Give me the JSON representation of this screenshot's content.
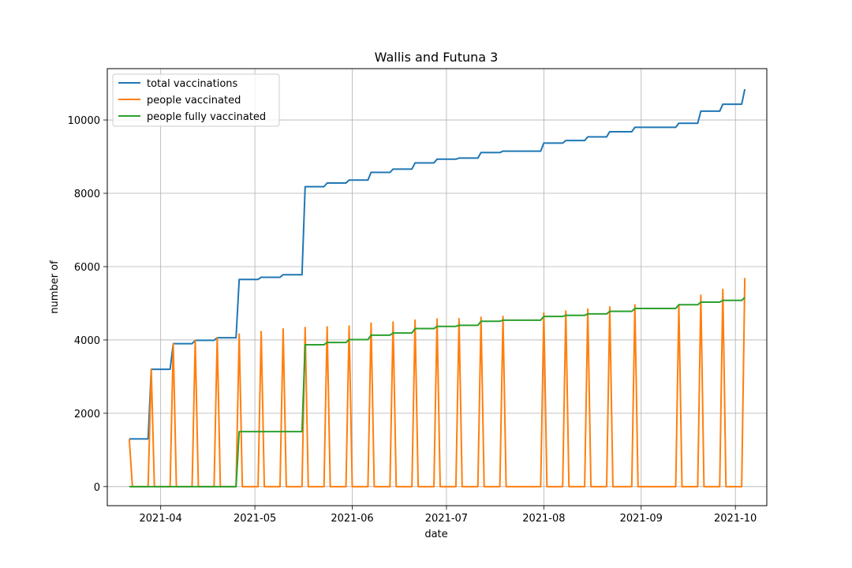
{
  "chart_data": {
    "type": "line",
    "title": "Wallis and Futuna 3",
    "xlabel": "date",
    "ylabel": "number of",
    "xlim": [
      "2021-03-15",
      "2021-10-11"
    ],
    "ylim": [
      -520,
      11400
    ],
    "xticks": [
      "2021-04-01",
      "2021-05-01",
      "2021-06-01",
      "2021-07-01",
      "2021-08-01",
      "2021-09-01",
      "2021-10-01"
    ],
    "xtick_labels": [
      "2021-04",
      "2021-05",
      "2021-06",
      "2021-07",
      "2021-08",
      "2021-09",
      "2021-10"
    ],
    "yticks": [
      0,
      2000,
      4000,
      6000,
      8000,
      10000
    ],
    "ytick_labels": [
      "0",
      "2000",
      "4000",
      "6000",
      "8000",
      "10000"
    ],
    "grid": true,
    "legend_position": "top-left",
    "series": [
      {
        "name": "total vaccinations",
        "color": "#1f77b4",
        "points": [
          [
            "2021-03-22",
            1300
          ],
          [
            "2021-03-28",
            1300
          ],
          [
            "2021-03-29",
            3200
          ],
          [
            "2021-04-04",
            3200
          ],
          [
            "2021-04-05",
            3900
          ],
          [
            "2021-04-11",
            3900
          ],
          [
            "2021-04-12",
            3990
          ],
          [
            "2021-04-18",
            3990
          ],
          [
            "2021-04-19",
            4060
          ],
          [
            "2021-04-25",
            4060
          ],
          [
            "2021-04-26",
            5650
          ],
          [
            "2021-05-02",
            5650
          ],
          [
            "2021-05-03",
            5710
          ],
          [
            "2021-05-09",
            5710
          ],
          [
            "2021-05-10",
            5780
          ],
          [
            "2021-05-16",
            5780
          ],
          [
            "2021-05-17",
            8180
          ],
          [
            "2021-05-23",
            8180
          ],
          [
            "2021-05-24",
            8280
          ],
          [
            "2021-05-30",
            8280
          ],
          [
            "2021-05-31",
            8360
          ],
          [
            "2021-06-06",
            8360
          ],
          [
            "2021-06-07",
            8570
          ],
          [
            "2021-06-13",
            8570
          ],
          [
            "2021-06-14",
            8660
          ],
          [
            "2021-06-20",
            8660
          ],
          [
            "2021-06-21",
            8830
          ],
          [
            "2021-06-27",
            8830
          ],
          [
            "2021-06-28",
            8930
          ],
          [
            "2021-07-04",
            8930
          ],
          [
            "2021-07-05",
            8960
          ],
          [
            "2021-07-11",
            8960
          ],
          [
            "2021-07-12",
            9110
          ],
          [
            "2021-07-18",
            9110
          ],
          [
            "2021-07-19",
            9150
          ],
          [
            "2021-07-31",
            9150
          ],
          [
            "2021-08-01",
            9370
          ],
          [
            "2021-08-07",
            9370
          ],
          [
            "2021-08-08",
            9440
          ],
          [
            "2021-08-14",
            9440
          ],
          [
            "2021-08-15",
            9540
          ],
          [
            "2021-08-21",
            9540
          ],
          [
            "2021-08-22",
            9680
          ],
          [
            "2021-08-29",
            9680
          ],
          [
            "2021-08-30",
            9800
          ],
          [
            "2021-09-12",
            9800
          ],
          [
            "2021-09-13",
            9910
          ],
          [
            "2021-09-19",
            9910
          ],
          [
            "2021-09-20",
            10240
          ],
          [
            "2021-09-26",
            10240
          ],
          [
            "2021-09-27",
            10430
          ],
          [
            "2021-10-03",
            10430
          ],
          [
            "2021-10-04",
            10840
          ]
        ]
      },
      {
        "name": "people vaccinated",
        "color": "#ff7f0e",
        "points": [
          [
            "2021-03-22",
            1300
          ],
          [
            "2021-03-23",
            0
          ],
          [
            "2021-03-28",
            0
          ],
          [
            "2021-03-29",
            3200
          ],
          [
            "2021-03-30",
            0
          ],
          [
            "2021-04-04",
            0
          ],
          [
            "2021-04-05",
            3900
          ],
          [
            "2021-04-06",
            0
          ],
          [
            "2021-04-11",
            0
          ],
          [
            "2021-04-12",
            3990
          ],
          [
            "2021-04-13",
            0
          ],
          [
            "2021-04-18",
            0
          ],
          [
            "2021-04-19",
            4060
          ],
          [
            "2021-04-20",
            0
          ],
          [
            "2021-04-25",
            0
          ],
          [
            "2021-04-26",
            4160
          ],
          [
            "2021-04-27",
            0
          ],
          [
            "2021-05-02",
            0
          ],
          [
            "2021-05-03",
            4230
          ],
          [
            "2021-05-04",
            0
          ],
          [
            "2021-05-09",
            0
          ],
          [
            "2021-05-10",
            4300
          ],
          [
            "2021-05-11",
            0
          ],
          [
            "2021-05-16",
            0
          ],
          [
            "2021-05-17",
            4340
          ],
          [
            "2021-05-18",
            0
          ],
          [
            "2021-05-23",
            0
          ],
          [
            "2021-05-24",
            4360
          ],
          [
            "2021-05-25",
            0
          ],
          [
            "2021-05-30",
            0
          ],
          [
            "2021-05-31",
            4380
          ],
          [
            "2021-06-01",
            0
          ],
          [
            "2021-06-06",
            0
          ],
          [
            "2021-06-07",
            4460
          ],
          [
            "2021-06-08",
            0
          ],
          [
            "2021-06-13",
            0
          ],
          [
            "2021-06-14",
            4490
          ],
          [
            "2021-06-15",
            0
          ],
          [
            "2021-06-20",
            0
          ],
          [
            "2021-06-21",
            4540
          ],
          [
            "2021-06-22",
            0
          ],
          [
            "2021-06-27",
            0
          ],
          [
            "2021-06-28",
            4570
          ],
          [
            "2021-06-29",
            0
          ],
          [
            "2021-07-04",
            0
          ],
          [
            "2021-07-05",
            4580
          ],
          [
            "2021-07-06",
            0
          ],
          [
            "2021-07-11",
            0
          ],
          [
            "2021-07-12",
            4620
          ],
          [
            "2021-07-13",
            0
          ],
          [
            "2021-07-18",
            0
          ],
          [
            "2021-07-19",
            4640
          ],
          [
            "2021-07-20",
            0
          ],
          [
            "2021-07-31",
            0
          ],
          [
            "2021-08-01",
            4740
          ],
          [
            "2021-08-02",
            0
          ],
          [
            "2021-08-07",
            0
          ],
          [
            "2021-08-08",
            4790
          ],
          [
            "2021-08-09",
            0
          ],
          [
            "2021-08-14",
            0
          ],
          [
            "2021-08-15",
            4840
          ],
          [
            "2021-08-16",
            0
          ],
          [
            "2021-08-21",
            0
          ],
          [
            "2021-08-22",
            4900
          ],
          [
            "2021-08-23",
            0
          ],
          [
            "2021-08-29",
            0
          ],
          [
            "2021-08-30",
            4960
          ],
          [
            "2021-08-31",
            0
          ],
          [
            "2021-09-12",
            0
          ],
          [
            "2021-09-13",
            4960
          ],
          [
            "2021-09-14",
            0
          ],
          [
            "2021-09-19",
            0
          ],
          [
            "2021-09-20",
            5220
          ],
          [
            "2021-09-21",
            0
          ],
          [
            "2021-09-26",
            0
          ],
          [
            "2021-09-27",
            5380
          ],
          [
            "2021-09-28",
            0
          ],
          [
            "2021-10-03",
            0
          ],
          [
            "2021-10-04",
            5690
          ]
        ]
      },
      {
        "name": "people fully vaccinated",
        "color": "#2ca02c",
        "points": [
          [
            "2021-03-22",
            0
          ],
          [
            "2021-04-25",
            0
          ],
          [
            "2021-04-26",
            1500
          ],
          [
            "2021-05-16",
            1500
          ],
          [
            "2021-05-17",
            3870
          ],
          [
            "2021-05-23",
            3870
          ],
          [
            "2021-05-24",
            3930
          ],
          [
            "2021-05-30",
            3930
          ],
          [
            "2021-05-31",
            4010
          ],
          [
            "2021-06-06",
            4010
          ],
          [
            "2021-06-07",
            4130
          ],
          [
            "2021-06-13",
            4130
          ],
          [
            "2021-06-14",
            4190
          ],
          [
            "2021-06-20",
            4190
          ],
          [
            "2021-06-21",
            4310
          ],
          [
            "2021-06-27",
            4310
          ],
          [
            "2021-06-28",
            4370
          ],
          [
            "2021-07-04",
            4370
          ],
          [
            "2021-07-05",
            4400
          ],
          [
            "2021-07-11",
            4400
          ],
          [
            "2021-07-12",
            4510
          ],
          [
            "2021-07-18",
            4510
          ],
          [
            "2021-07-19",
            4540
          ],
          [
            "2021-07-31",
            4540
          ],
          [
            "2021-08-01",
            4640
          ],
          [
            "2021-08-07",
            4640
          ],
          [
            "2021-08-08",
            4670
          ],
          [
            "2021-08-14",
            4670
          ],
          [
            "2021-08-15",
            4710
          ],
          [
            "2021-08-21",
            4710
          ],
          [
            "2021-08-22",
            4780
          ],
          [
            "2021-08-29",
            4780
          ],
          [
            "2021-08-30",
            4860
          ],
          [
            "2021-09-12",
            4860
          ],
          [
            "2021-09-13",
            4960
          ],
          [
            "2021-09-19",
            4960
          ],
          [
            "2021-09-20",
            5030
          ],
          [
            "2021-09-26",
            5030
          ],
          [
            "2021-09-27",
            5080
          ],
          [
            "2021-10-03",
            5080
          ],
          [
            "2021-10-04",
            5160
          ]
        ]
      }
    ]
  }
}
